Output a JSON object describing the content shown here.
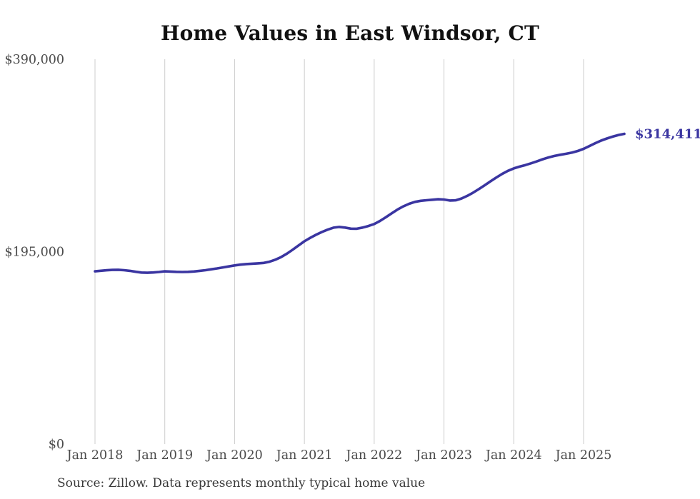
{
  "chart_data": {
    "type": "line",
    "title": "Home Values in East Windsor, CT",
    "source": "Source: Zillow. Data represents monthly typical home value",
    "x_range": [
      "Jan 2018",
      "Aug 2025"
    ],
    "x_frequency": "monthly",
    "x_tick_labels": [
      "Jan 2018",
      "Jan 2019",
      "Jan 2020",
      "Jan 2021",
      "Jan 2022",
      "Jan 2023",
      "Jan 2024",
      "Jan 2025"
    ],
    "y_ticks": [
      {
        "value": 0,
        "label": "$0"
      },
      {
        "value": 195000,
        "label": "$195,000"
      },
      {
        "value": 390000,
        "label": "$390,000"
      }
    ],
    "ylim": [
      0,
      390000
    ],
    "grid": "vertical-only",
    "legend": "none",
    "end_label": "$314,411",
    "end_value": 314411,
    "series": [
      {
        "name": "Typical home value",
        "values": [
          175000,
          175600,
          176100,
          176500,
          176600,
          176200,
          175500,
          174600,
          173800,
          173600,
          173900,
          174400,
          175000,
          174800,
          174500,
          174400,
          174500,
          174900,
          175500,
          176200,
          177100,
          178000,
          179000,
          180000,
          181000,
          181800,
          182400,
          182800,
          183100,
          183600,
          184800,
          186800,
          189500,
          193000,
          197000,
          201300,
          205500,
          209000,
          212100,
          214900,
          217300,
          219300,
          220000,
          219400,
          218300,
          218200,
          219400,
          221000,
          223000,
          226100,
          229800,
          233800,
          237600,
          240900,
          243500,
          245400,
          246500,
          247100,
          247600,
          248100,
          247800,
          246800,
          247000,
          248800,
          251500,
          254800,
          258400,
          262300,
          266300,
          270200,
          273800,
          276900,
          279400,
          281200,
          282800,
          284600,
          286600,
          288700,
          290500,
          292000,
          293200,
          294200,
          295400,
          297000,
          299200,
          302000,
          304900,
          307500,
          309700,
          311600,
          313200,
          314411
        ]
      }
    ],
    "colors": {
      "line": "#3a35a1",
      "grid": "#cccccc",
      "tick_text": "#4a4a4a",
      "title_text": "#111111",
      "source_text": "#383838"
    }
  }
}
